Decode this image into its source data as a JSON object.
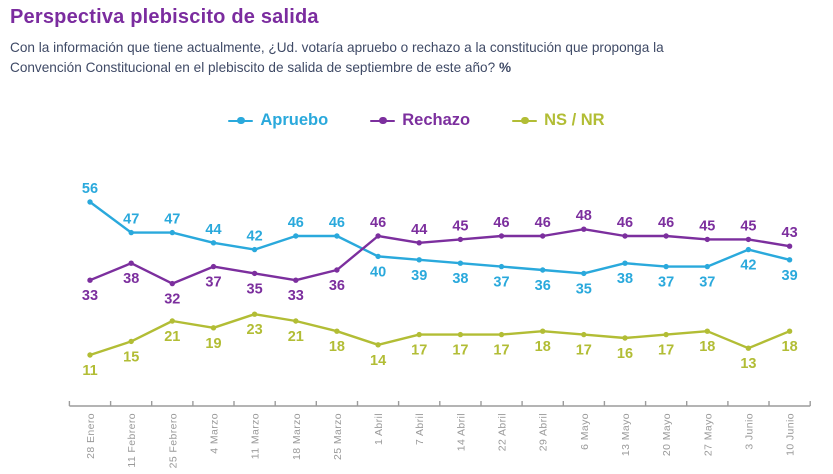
{
  "header": {
    "title": "Perspectiva plebiscito de salida",
    "title_color": "#7B2C9F",
    "subtitle_line1": "Con la información que tiene actualmente, ¿Ud. votaría apruebo o rechazo a la constitución que proponga la",
    "subtitle_line2": "Convención Constitucional en el plebiscito de salida de septiembre de este año? ",
    "subtitle_suffix": "%",
    "subtitle_color": "#3F4A66"
  },
  "chart_data": {
    "type": "line",
    "title": "Perspectiva plebiscito de salida",
    "subtitle": "Con la información que tiene actualmente, ¿Ud. votaría apruebo o rechazo a la constitución que proponga la Convención Constitucional en el plebiscito de salida de septiembre de este año? %",
    "unit": "%",
    "categories": [
      "28 Enero",
      "11 Febrero",
      "25 Febrero",
      "4 Marzo",
      "11 Marzo",
      "18 Marzo",
      "25 Marzo",
      "1 Abril",
      "7 Abril",
      "14 Abril",
      "22 Abril",
      "29 Abril",
      "6 Mayo",
      "13 Mayo",
      "20 Mayo",
      "27 Mayo",
      "3 Junio",
      "10 Junio"
    ],
    "series": [
      {
        "name": "Apruebo",
        "color": "#2AA9DC",
        "values": [
          56,
          47,
          47,
          44,
          42,
          46,
          46,
          40,
          39,
          38,
          37,
          36,
          35,
          38,
          37,
          37,
          42,
          39
        ],
        "label_side": [
          "above",
          "above",
          "above",
          "above",
          "above",
          "above",
          "above",
          "below",
          "below",
          "below",
          "below",
          "below",
          "below",
          "below",
          "below",
          "below",
          "below",
          "below"
        ]
      },
      {
        "name": "Rechazo",
        "color": "#7C2F9E",
        "values": [
          33,
          38,
          32,
          37,
          35,
          33,
          36,
          46,
          44,
          45,
          46,
          46,
          48,
          46,
          46,
          45,
          45,
          43
        ],
        "label_side": [
          "below",
          "below",
          "below",
          "below",
          "below",
          "below",
          "below",
          "above",
          "above",
          "above",
          "above",
          "above",
          "above",
          "above",
          "above",
          "above",
          "above",
          "above"
        ]
      },
      {
        "name": "NS / NR",
        "color": "#B2BD35",
        "values": [
          11,
          15,
          21,
          19,
          23,
          21,
          18,
          14,
          17,
          17,
          17,
          18,
          17,
          16,
          17,
          18,
          13,
          18
        ],
        "label_side": [
          "below",
          "below",
          "below",
          "below",
          "below",
          "below",
          "below",
          "below",
          "below",
          "below",
          "below",
          "below",
          "below",
          "below",
          "below",
          "below",
          "below",
          "below"
        ]
      }
    ],
    "xlabel": "",
    "ylabel": "",
    "ylim": [
      0,
      60
    ],
    "grid": false,
    "legend_position": "top-center",
    "axis_color": "#9C9C9C",
    "tick_label_color": "#9A9A9A"
  }
}
